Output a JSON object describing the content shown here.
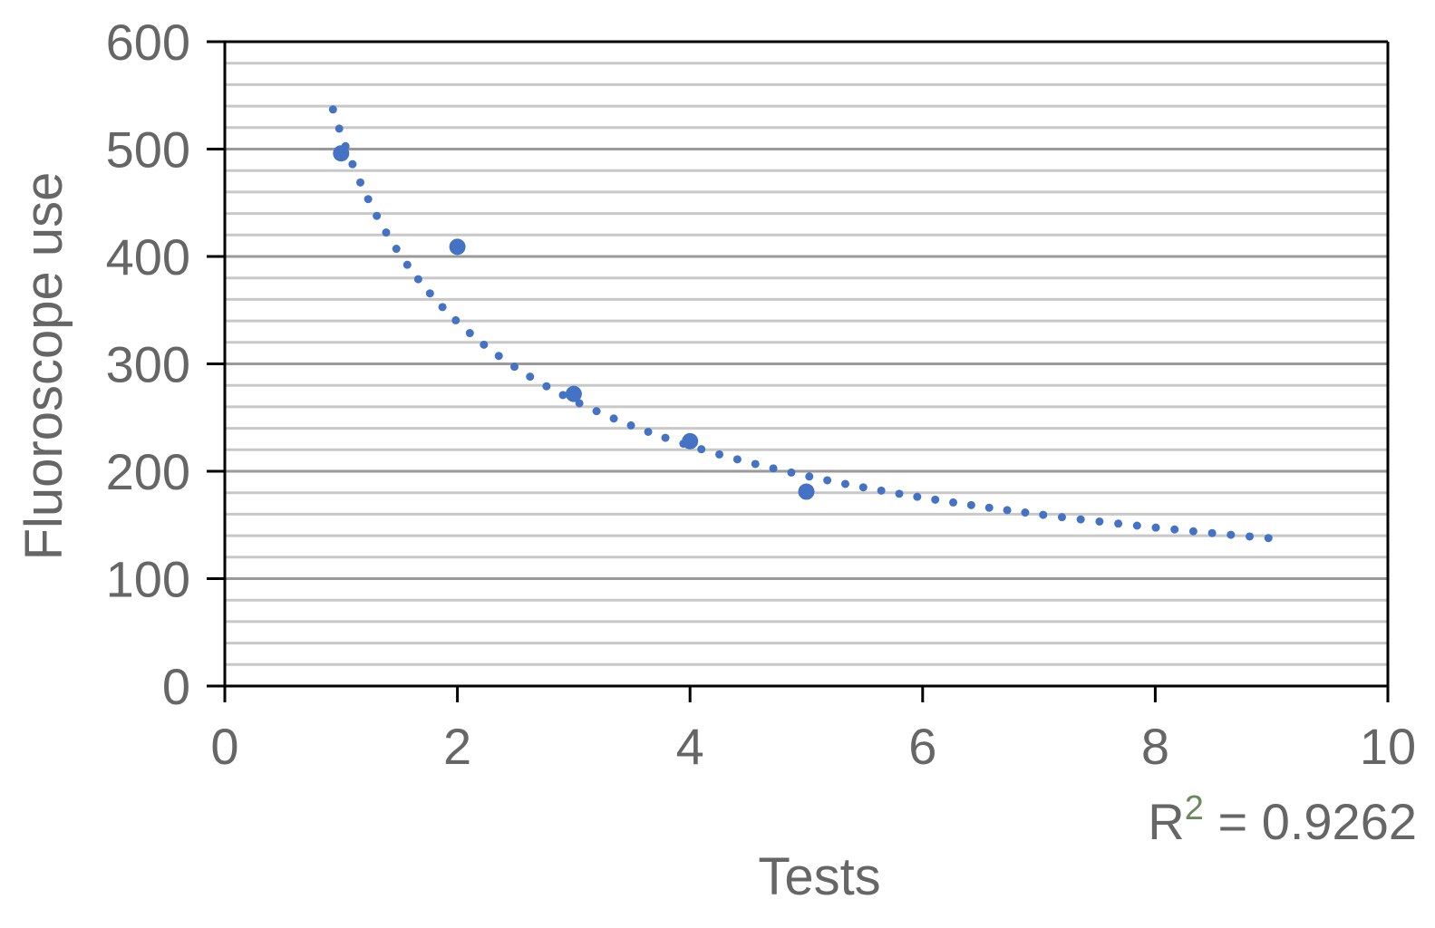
{
  "chart_data": {
    "type": "scatter",
    "xlabel": "Tests",
    "ylabel": "Fluoroscope use",
    "xlim": [
      0,
      10
    ],
    "ylim": [
      0,
      600
    ],
    "x_ticks": [
      "0",
      "2",
      "4",
      "6",
      "8",
      "10"
    ],
    "y_ticks": [
      "0",
      "100",
      "200",
      "300",
      "400",
      "500",
      "600"
    ],
    "grid": true,
    "series": [
      {
        "kind": "points",
        "color": "#4472c4",
        "x": [
          1,
          2,
          3,
          4,
          5
        ],
        "y": [
          496,
          409,
          272,
          228,
          181
        ]
      },
      {
        "kind": "trendline",
        "style": "dotted",
        "model": "power",
        "color": "#4472c4",
        "coefficient": 514,
        "exponent": -0.6,
        "x_range": [
          0.93,
          9
        ]
      }
    ],
    "annotation": {
      "r2_label_base": "R",
      "r2_label_sup": "2",
      "r2_label_rest": " = 0.9262"
    }
  }
}
